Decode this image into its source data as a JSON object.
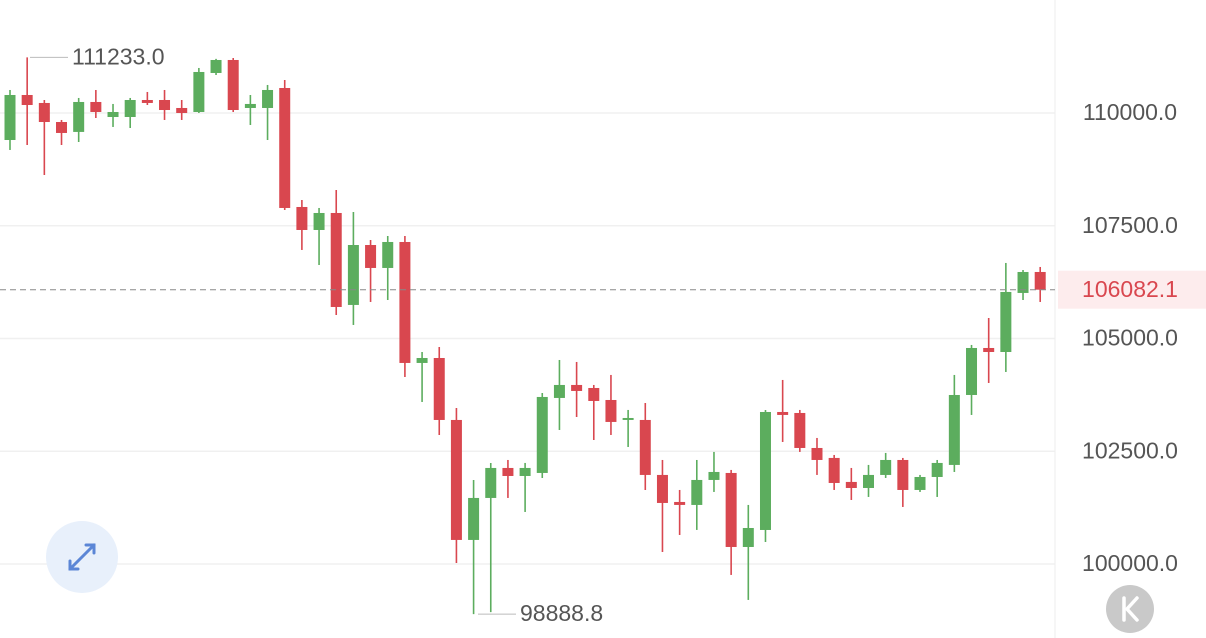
{
  "chart_data": {
    "type": "candlestick",
    "ylim": [
      98360,
      112505
    ],
    "yticks": [
      {
        "value": 100000,
        "label": "100000.0"
      },
      {
        "value": 102500,
        "label": "102500.0"
      },
      {
        "value": 105000,
        "label": "105000.0"
      },
      {
        "value": 107500,
        "label": "107500.0"
      },
      {
        "value": 110000,
        "label": "110000.0"
      }
    ],
    "grid": true,
    "up_color": "#5cad5e",
    "down_color": "#d9474f",
    "annotations": [
      {
        "value": 111233,
        "label": "111233.0"
      },
      {
        "value": 98888.8,
        "label": "98888.8"
      }
    ],
    "open": [
      109401,
      110399,
      110222,
      109800,
      109580,
      110244,
      109911,
      109911,
      110288,
      110288,
      110111,
      110022,
      110887,
      111175,
      110111,
      110111,
      110554,
      107916,
      107406,
      107783,
      105744,
      107073,
      106564,
      107140,
      104458,
      104568,
      103194,
      100534,
      101465,
      102130,
      101952,
      102019,
      103682,
      103970,
      103903,
      103637,
      103194,
      103194,
      101975,
      101376,
      101310,
      101864,
      102019,
      100378,
      100755,
      103371,
      103349,
      102573,
      102352,
      101820,
      101686,
      101975,
      102307,
      101642,
      101930,
      102197,
      103748,
      104790,
      104701,
      106010,
      106475
    ],
    "high": [
      110510,
      111233,
      110288,
      109845,
      110333,
      110510,
      110200,
      110333,
      110466,
      110510,
      110288,
      110998,
      111200,
      111219,
      110399,
      110621,
      110732,
      108071,
      107894,
      108293,
      107805,
      107184,
      107273,
      107273,
      104701,
      104812,
      103460,
      101864,
      102241,
      102307,
      102241,
      103792,
      104524,
      104480,
      103970,
      104192,
      103416,
      103571,
      102307,
      101642,
      102307,
      102485,
      102086,
      101310,
      103416,
      104081,
      103416,
      102795,
      102418,
      102130,
      102197,
      102463,
      102352,
      101975,
      102307,
      104192,
      104857,
      105455,
      106675,
      106519,
      106586
    ],
    "low": [
      109180,
      109290,
      108625,
      109290,
      109357,
      109889,
      109690,
      109667,
      110177,
      109845,
      109845,
      110000,
      110842,
      110022,
      109734,
      109401,
      107850,
      106963,
      106630,
      105522,
      105300,
      105810,
      105854,
      104147,
      103593,
      102861,
      100023,
      98888.8,
      98933,
      101465,
      101154,
      101908,
      102972,
      103260,
      102750,
      102861,
      102595,
      101642,
      100267,
      100644,
      100756,
      101598,
      99758,
      99204,
      100489,
      102706,
      102485,
      101975,
      101642,
      101420,
      101487,
      101908,
      101265,
      101598,
      101487,
      102041,
      103305,
      104014,
      104258,
      105854,
      105810
    ],
    "close": [
      110399,
      110177,
      109800,
      109557,
      110244,
      110022,
      110022,
      110288,
      110222,
      110066,
      110000,
      110909,
      111175,
      110066,
      110200,
      110510,
      107894,
      107406,
      107783,
      105699,
      107073,
      106564,
      107140,
      104458,
      104568,
      103194,
      100534,
      101465,
      102130,
      101952,
      102130,
      103704,
      103970,
      103837,
      103615,
      103150,
      103238,
      101975,
      101354,
      101310,
      101864,
      102041,
      100378,
      100799,
      103371,
      103305,
      102573,
      102307,
      101797,
      101686,
      101975,
      102307,
      101642,
      101930,
      102241,
      103748,
      104790,
      104701,
      106032,
      106475,
      106082.1
    ]
  }
}
